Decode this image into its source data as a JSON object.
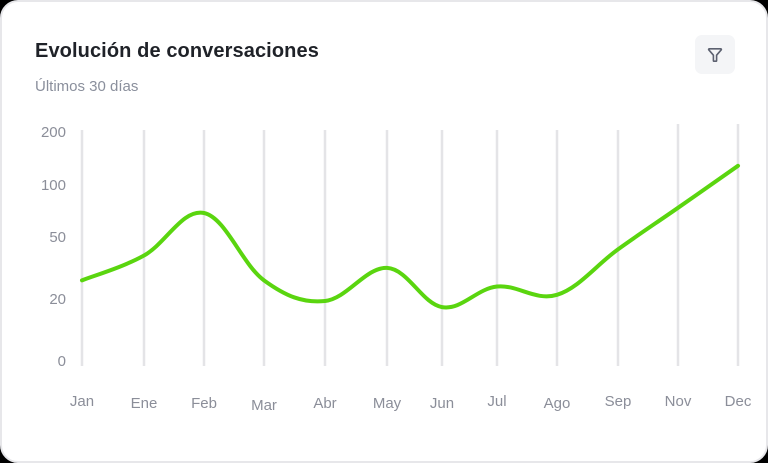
{
  "card": {
    "title": "Evolución de conversaciones",
    "subtitle": "Últimos 30 días",
    "filter_button": {
      "icon": "filter-icon"
    }
  },
  "colors": {
    "line": "#5ad50f",
    "grid": "#e4e4e7",
    "axis_text": "#8b8e99",
    "title": "#1f2228",
    "subtitle": "#8a8f9c",
    "card_border": "#e7e7ea",
    "filter_bg": "#f4f5f7"
  },
  "chart_data": {
    "type": "line",
    "title": "Evolución de conversaciones",
    "subtitle": "Últimos 30 días",
    "categories": [
      "Jan",
      "Ene",
      "Feb",
      "Mar",
      "Abr",
      "May",
      "Jun",
      "Jul",
      "Ago",
      "Sep",
      "Nov",
      "Dec"
    ],
    "series": [
      {
        "name": "Conversaciones",
        "values": [
          30,
          42,
          75,
          30,
          20,
          36,
          18,
          27,
          23,
          45,
          80,
          140
        ]
      }
    ],
    "y_ticks": [
      "200",
      "100",
      "50",
      "20",
      "0"
    ],
    "ylim": [
      0,
      200
    ],
    "y_scale": "non-linear (0, 20, 50, 100, 200)",
    "xlabel": "",
    "ylabel": "",
    "grid": {
      "vertical": true,
      "horizontal": false
    },
    "legend": "none",
    "curve": "smooth"
  }
}
